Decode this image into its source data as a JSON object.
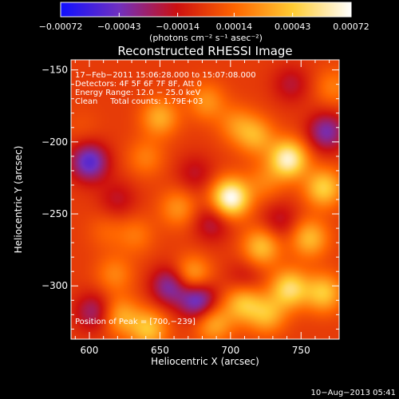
{
  "chart_data": {
    "type": "heatmap",
    "title": "Reconstructed RHESSI Image",
    "xlabel": "Heliocentric X (arcsec)",
    "ylabel": "Heliocentric Y (arcsec)",
    "xlim": [
      587,
      777
    ],
    "ylim": [
      -337,
      -143
    ],
    "x_ticks": [
      600,
      650,
      700,
      750
    ],
    "y_ticks": [
      -150,
      -200,
      -250,
      -300
    ],
    "x_tick_labels": [
      "600",
      "650",
      "700",
      "750"
    ],
    "y_tick_labels": [
      "−150",
      "−200",
      "−250",
      "−300"
    ],
    "colorbar": {
      "range": [
        -0.00072,
        0.00072
      ],
      "ticks": [
        -0.00072,
        -0.00043,
        -0.00014,
        0.00014,
        0.00043,
        0.00072
      ],
      "tick_labels": [
        "−0.00072",
        "−0.00043",
        "−0.00014",
        "0.00014",
        "0.00043",
        "0.00072"
      ],
      "unit_label": "(photons cm⁻² s⁻¹ asec⁻²)",
      "colors": [
        "#1010ff",
        "#7030c0",
        "#cc1010",
        "#ff6600",
        "#ffcc33",
        "#ffffff"
      ]
    },
    "annotations": [
      "17−Feb−2011 15:06:28.000 to 15:07:08.000",
      "Detectors: 4F 5F 6F 7F 8F, Att 0",
      "Energy Range: 12.0 − 25.0 keV",
      "Clean     Total counts: 1.79E+03"
    ],
    "peak_label": "Position of Peak = [700,−239]",
    "sources": [
      {
        "x": 700,
        "y": -239,
        "v": 0.00072
      },
      {
        "x": 741,
        "y": -212,
        "v": 0.00064
      },
      {
        "x": 766,
        "y": -232,
        "v": 0.00045
      },
      {
        "x": 722,
        "y": -273,
        "v": 0.0004
      },
      {
        "x": 756,
        "y": -267,
        "v": 0.00038
      },
      {
        "x": 742,
        "y": -302,
        "v": 0.0005
      },
      {
        "x": 766,
        "y": -305,
        "v": 0.00042
      },
      {
        "x": 726,
        "y": -320,
        "v": 0.00035
      },
      {
        "x": 709,
        "y": -312,
        "v": 0.0004
      },
      {
        "x": 673,
        "y": -293,
        "v": 0.00036
      },
      {
        "x": 688,
        "y": -326,
        "v": 0.00034
      },
      {
        "x": 642,
        "y": -330,
        "v": 0.0004
      },
      {
        "x": 622,
        "y": -321,
        "v": 0.00032
      },
      {
        "x": 618,
        "y": -292,
        "v": 0.00022
      },
      {
        "x": 650,
        "y": -183,
        "v": 0.00034
      },
      {
        "x": 683,
        "y": -172,
        "v": 0.00026
      },
      {
        "x": 718,
        "y": -196,
        "v": 0.00032
      },
      {
        "x": 704,
        "y": -188,
        "v": 0.00022
      },
      {
        "x": 640,
        "y": -211,
        "v": 0.0002
      },
      {
        "x": 663,
        "y": -246,
        "v": 0.00026
      },
      {
        "x": 633,
        "y": -265,
        "v": 0.00018
      },
      {
        "x": 612,
        "y": -262,
        "v": 0.00012
      },
      {
        "x": 773,
        "y": -162,
        "v": 0.0002
      },
      {
        "x": 595,
        "y": -190,
        "v": 6e-05
      },
      {
        "x": 724,
        "y": -228,
        "v": 0.00018
      },
      {
        "x": 600,
        "y": -214,
        "v": -0.0005
      },
      {
        "x": 768,
        "y": -193,
        "v": -0.0004
      },
      {
        "x": 657,
        "y": -300,
        "v": -0.0004
      },
      {
        "x": 677,
        "y": -310,
        "v": -0.0005
      },
      {
        "x": 603,
        "y": -318,
        "v": -0.0003
      },
      {
        "x": 687,
        "y": -256,
        "v": -0.00024
      },
      {
        "x": 743,
        "y": -160,
        "v": -0.0002
      },
      {
        "x": 620,
        "y": -240,
        "v": -0.00018
      },
      {
        "x": 735,
        "y": -255,
        "v": -0.0002
      },
      {
        "x": 675,
        "y": -222,
        "v": -0.00018
      },
      {
        "x": 710,
        "y": -295,
        "v": -0.00016
      }
    ]
  },
  "footer": {
    "timestamp": "10−Aug−2013 05:41"
  }
}
